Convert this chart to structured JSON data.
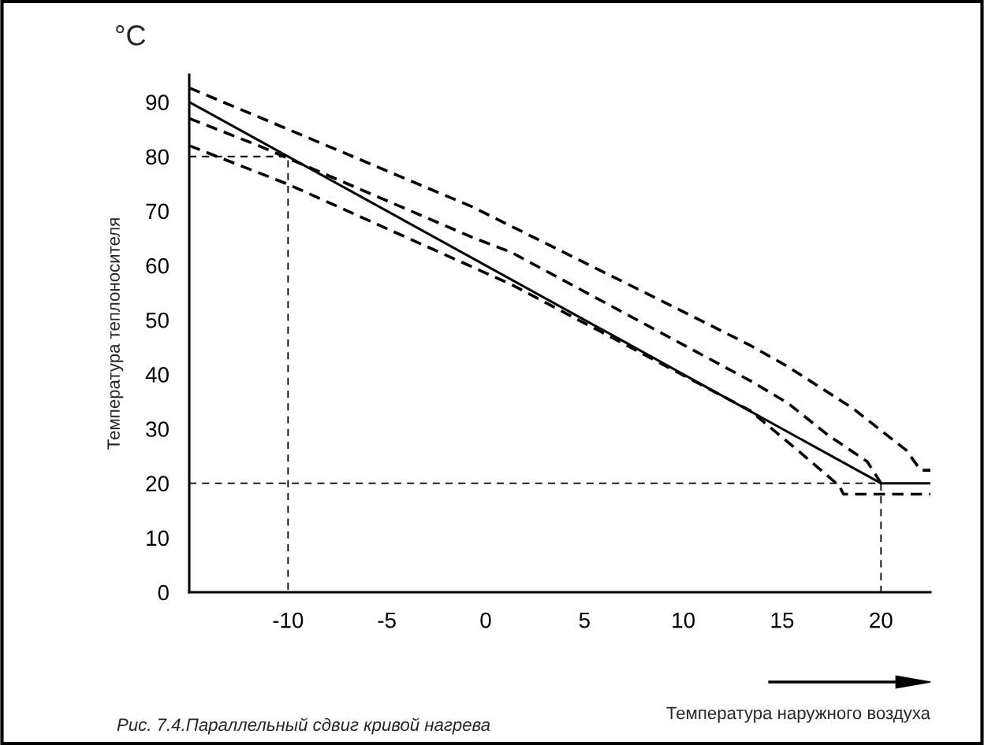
{
  "chart_data": {
    "type": "line",
    "xlabel": "Температура наружного воздуха",
    "ylabel": "Температура теплоносителя",
    "annotations": [
      "°C",
      "Рис. 7.4.Параллельный сдвиг кривой нагрева"
    ],
    "xlim": [
      -15,
      22.5
    ],
    "ylim": [
      0,
      95
    ],
    "xticks": [
      -10,
      -5,
      0,
      5,
      10,
      15,
      20
    ],
    "yticks": [
      0,
      10,
      20,
      30,
      40,
      50,
      60,
      70,
      80,
      90
    ],
    "grid": false,
    "legend": false,
    "marker": "none",
    "series": [
      {
        "color": "#000000",
        "line_style": "solid",
        "x": [
          -15,
          20,
          22.5
        ],
        "values": [
          90,
          20,
          20
        ]
      },
      {
        "color": "#000000",
        "line_style": "dashed",
        "x": [
          -15,
          -10,
          -0.7,
          10,
          13.4,
          15.3,
          18.6,
          21.3,
          22,
          22.5
        ],
        "values": [
          92.6,
          85,
          70.8,
          51.5,
          45.3,
          41.4,
          33.7,
          26,
          22.4,
          22.4
        ]
      },
      {
        "color": "#000000",
        "line_style": "dashed",
        "x": [
          -15,
          -11.5,
          -0.7,
          1.3,
          13.4,
          15.3,
          17.3,
          19.3,
          19.9,
          20
        ],
        "values": [
          87,
          82,
          65.2,
          62.4,
          38.8,
          34.7,
          28.9,
          24,
          20.6,
          20
        ]
      },
      {
        "color": "#000000",
        "line_style": "dashed",
        "x": [
          -15,
          -10,
          1.3,
          13.4,
          16,
          17.9,
          18.1,
          22.5
        ],
        "values": [
          82,
          74.9,
          56.5,
          33.3,
          25.4,
          19.5,
          18,
          18
        ]
      },
      {
        "color": "#000000",
        "line_style": "dotted",
        "x": [
          -15,
          -10,
          -10
        ],
        "values": [
          80,
          80,
          0
        ]
      },
      {
        "color": "#000000",
        "line_style": "dotted",
        "x": [
          -15,
          20,
          20
        ],
        "values": [
          20,
          20,
          0
        ]
      }
    ]
  }
}
